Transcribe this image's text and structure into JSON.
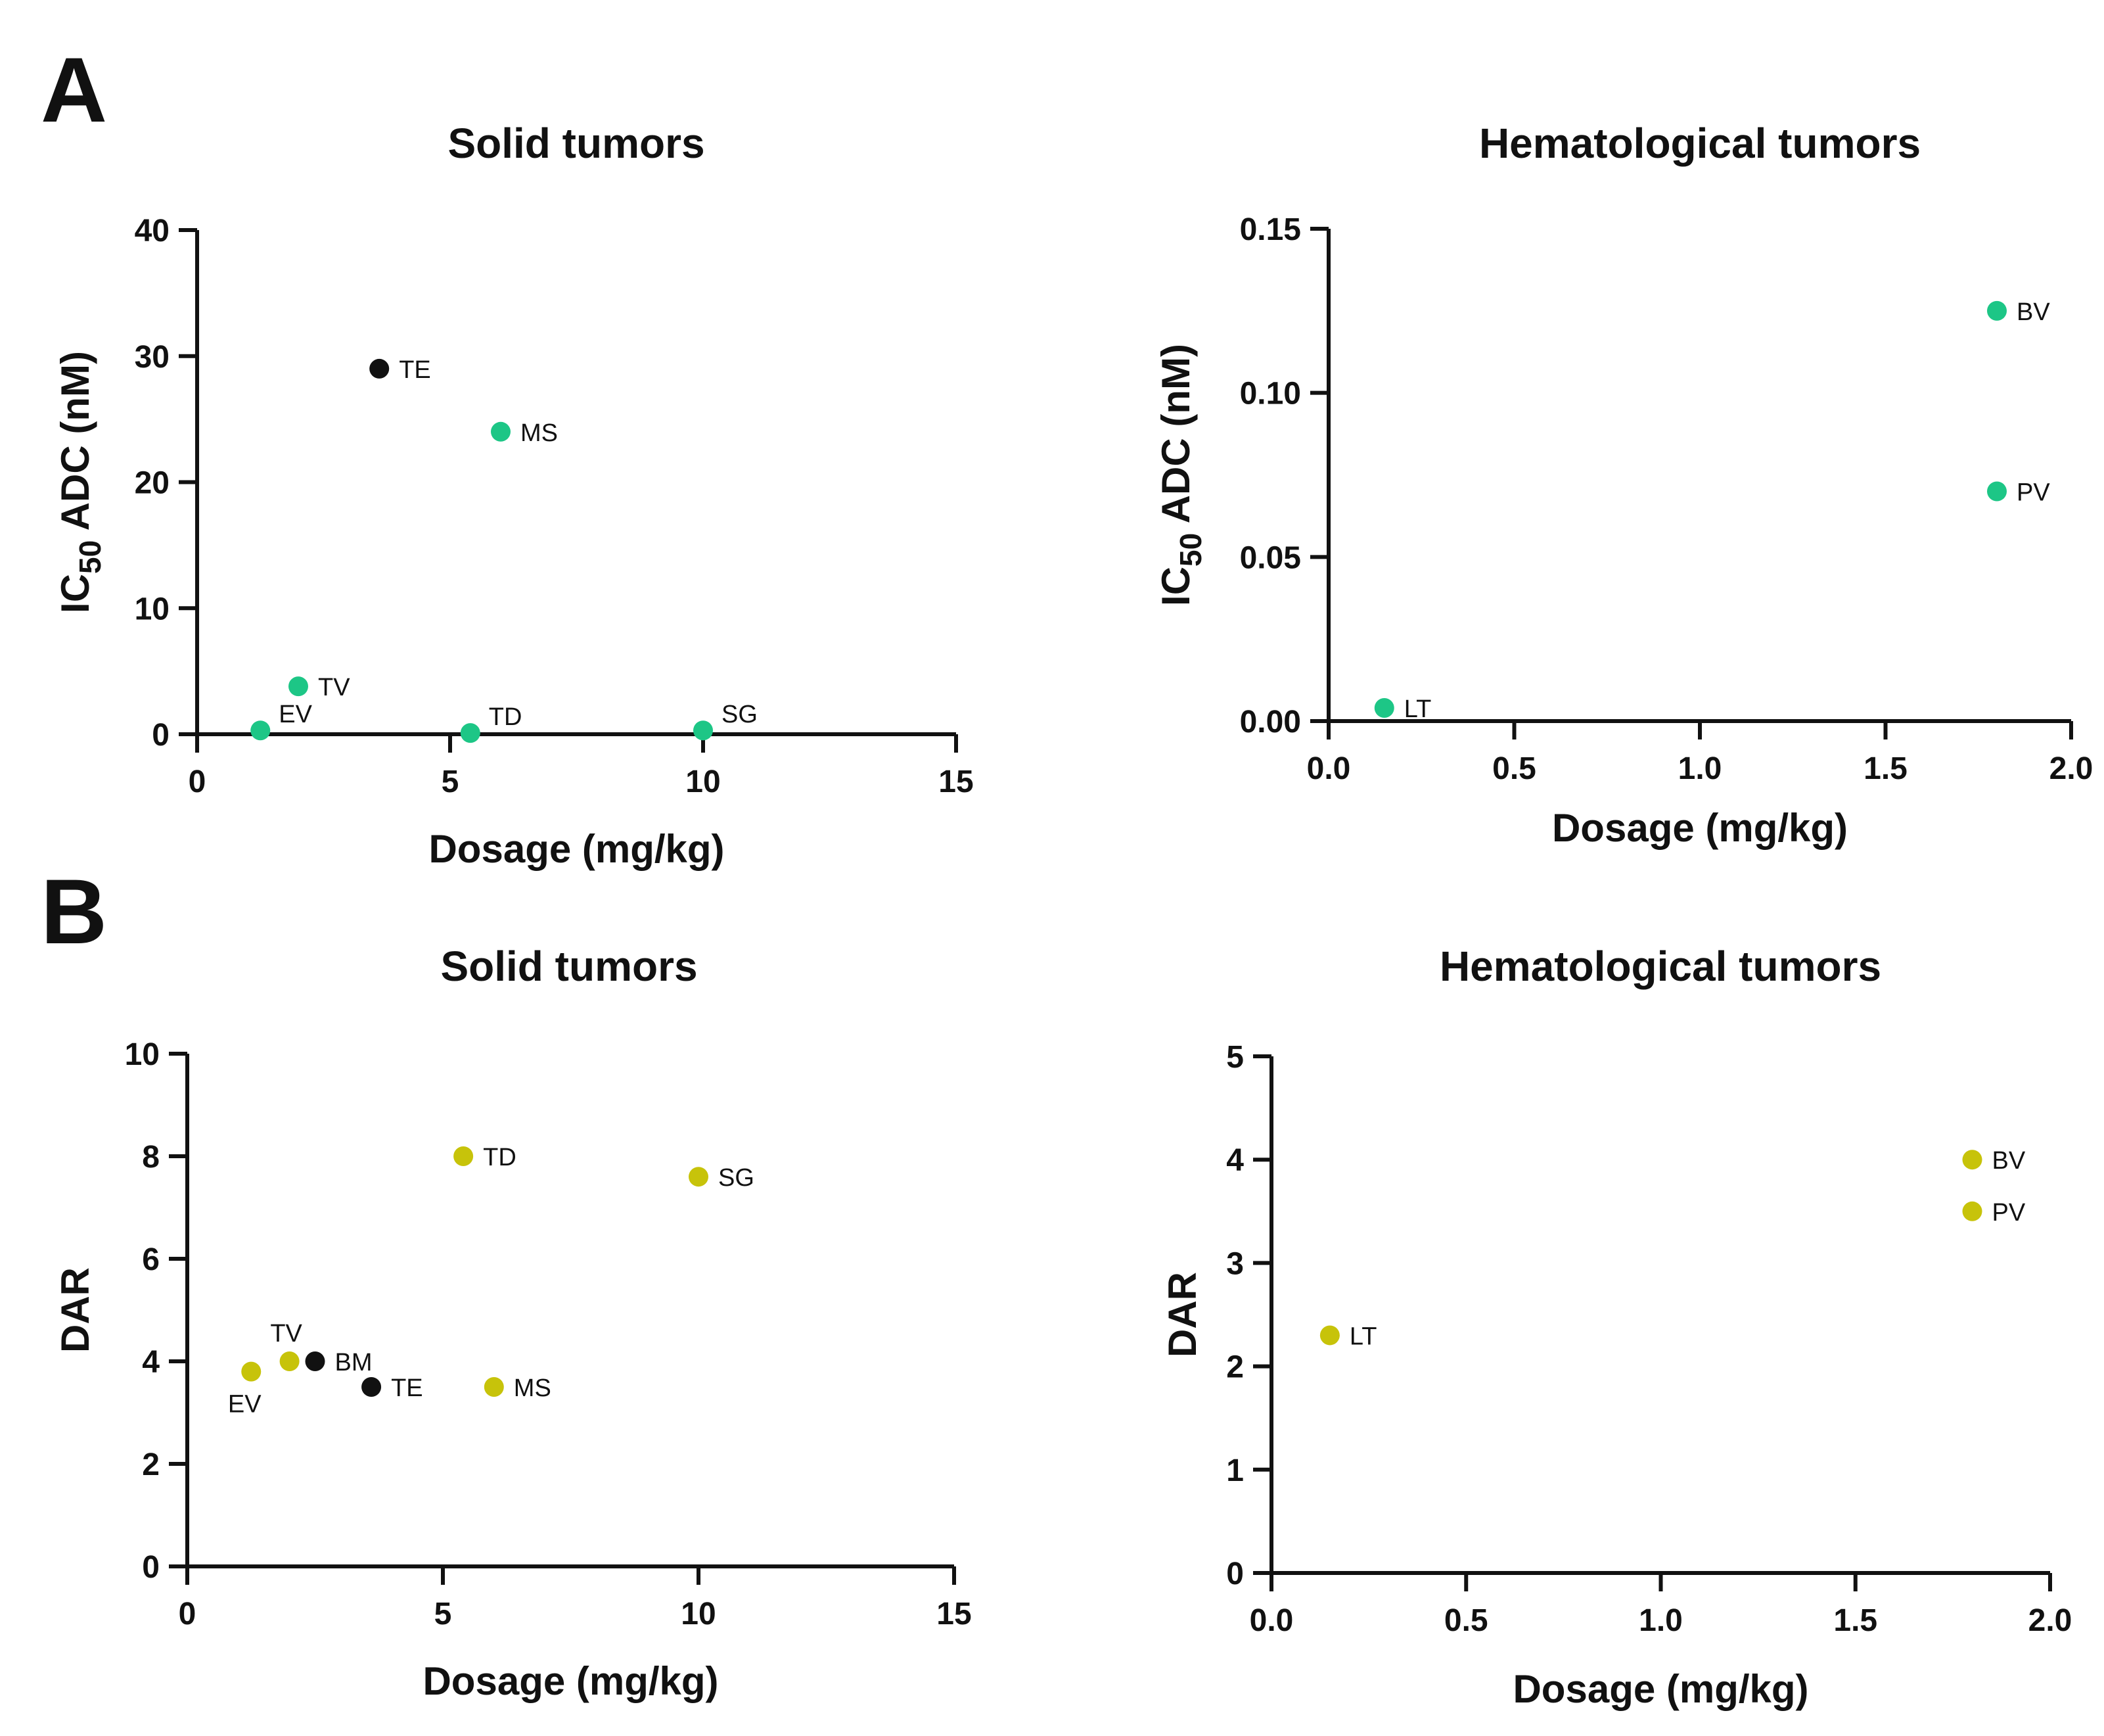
{
  "panels": [
    {
      "letter": "A"
    },
    {
      "letter": "B"
    }
  ],
  "colors": {
    "green": "#1dc686",
    "yellow": "#c7c30a",
    "black": "#111111"
  },
  "chart_data": [
    {
      "type": "scatter",
      "panel": "A",
      "title": "Solid tumors",
      "xlabel": "Dosage (mg/kg)",
      "ylabel_main": "IC",
      "ylabel_sub": "50",
      "ylabel_rest": " ADC (nM)",
      "xlim": [
        0,
        15
      ],
      "ylim": [
        0,
        40
      ],
      "xticks": [
        0,
        5,
        10,
        15
      ],
      "yticks": [
        0,
        10,
        20,
        30,
        40
      ],
      "xtick_labels": [
        "0",
        "5",
        "10",
        "15"
      ],
      "ytick_labels": [
        "0",
        "10",
        "20",
        "30",
        "40"
      ],
      "points": [
        {
          "label": "TE",
          "x": 3.6,
          "y": 29,
          "color": "black",
          "label_pos": "right"
        },
        {
          "label": "MS",
          "x": 6.0,
          "y": 24,
          "color": "green",
          "label_pos": "right"
        },
        {
          "label": "TV",
          "x": 2.0,
          "y": 3.8,
          "color": "green",
          "label_pos": "right"
        },
        {
          "label": "EV",
          "x": 1.25,
          "y": 0.3,
          "color": "green",
          "label_pos": "upper-right"
        },
        {
          "label": "TD",
          "x": 5.4,
          "y": 0.1,
          "color": "green",
          "label_pos": "upper-right"
        },
        {
          "label": "SG",
          "x": 10.0,
          "y": 0.3,
          "color": "green",
          "label_pos": "upper-right"
        }
      ]
    },
    {
      "type": "scatter",
      "panel": "A",
      "title": "Hematological tumors",
      "xlabel": "Dosage (mg/kg)",
      "ylabel_main": "IC",
      "ylabel_sub": "50",
      "ylabel_rest": " ADC (nM)",
      "xlim": [
        0,
        2
      ],
      "ylim": [
        0,
        0.15
      ],
      "xticks": [
        0,
        0.5,
        1.0,
        1.5,
        2.0
      ],
      "yticks": [
        0,
        0.05,
        0.1,
        0.15
      ],
      "xtick_labels": [
        "0.0",
        "0.5",
        "1.0",
        "1.5",
        "2.0"
      ],
      "ytick_labels": [
        "0.00",
        "0.05",
        "0.10",
        "0.15"
      ],
      "points": [
        {
          "label": "BV",
          "x": 1.8,
          "y": 0.125,
          "color": "green",
          "label_pos": "right"
        },
        {
          "label": "PV",
          "x": 1.8,
          "y": 0.07,
          "color": "green",
          "label_pos": "right"
        },
        {
          "label": "LT",
          "x": 0.15,
          "y": 0.004,
          "color": "green",
          "label_pos": "right"
        }
      ]
    },
    {
      "type": "scatter",
      "panel": "B",
      "title": "Solid tumors",
      "xlabel": "Dosage (mg/kg)",
      "ylabel": "DAR",
      "xlim": [
        0,
        15
      ],
      "ylim": [
        0,
        10
      ],
      "xticks": [
        0,
        5,
        10,
        15
      ],
      "yticks": [
        0,
        2,
        4,
        6,
        8,
        10
      ],
      "xtick_labels": [
        "0",
        "5",
        "10",
        "15"
      ],
      "ytick_labels": [
        "0",
        "2",
        "4",
        "6",
        "8",
        "10"
      ],
      "points": [
        {
          "label": "TD",
          "x": 5.4,
          "y": 8.0,
          "color": "yellow",
          "label_pos": "right"
        },
        {
          "label": "SG",
          "x": 10.0,
          "y": 7.6,
          "color": "yellow",
          "label_pos": "right"
        },
        {
          "label": "TV",
          "x": 2.0,
          "y": 4.0,
          "color": "yellow",
          "label_pos": "above"
        },
        {
          "label": "BM",
          "x": 2.5,
          "y": 4.0,
          "color": "black",
          "label_pos": "right"
        },
        {
          "label": "EV",
          "x": 1.25,
          "y": 3.8,
          "color": "yellow",
          "label_pos": "below"
        },
        {
          "label": "TE",
          "x": 3.6,
          "y": 3.5,
          "color": "black",
          "label_pos": "right"
        },
        {
          "label": "MS",
          "x": 6.0,
          "y": 3.5,
          "color": "yellow",
          "label_pos": "right"
        }
      ]
    },
    {
      "type": "scatter",
      "panel": "B",
      "title": "Hematological tumors",
      "xlabel": "Dosage (mg/kg)",
      "ylabel": "DAR",
      "xlim": [
        0,
        2
      ],
      "ylim": [
        0,
        5
      ],
      "xticks": [
        0,
        0.5,
        1.0,
        1.5,
        2.0
      ],
      "yticks": [
        0,
        1,
        2,
        3,
        4,
        5
      ],
      "xtick_labels": [
        "0.0",
        "0.5",
        "1.0",
        "1.5",
        "2.0"
      ],
      "ytick_labels": [
        "0",
        "1",
        "2",
        "3",
        "4",
        "5"
      ],
      "points": [
        {
          "label": "BV",
          "x": 1.8,
          "y": 4.0,
          "color": "yellow",
          "label_pos": "right"
        },
        {
          "label": "PV",
          "x": 1.8,
          "y": 3.5,
          "color": "yellow",
          "label_pos": "right"
        },
        {
          "label": "LT",
          "x": 0.15,
          "y": 2.3,
          "color": "yellow",
          "label_pos": "right"
        }
      ]
    }
  ]
}
